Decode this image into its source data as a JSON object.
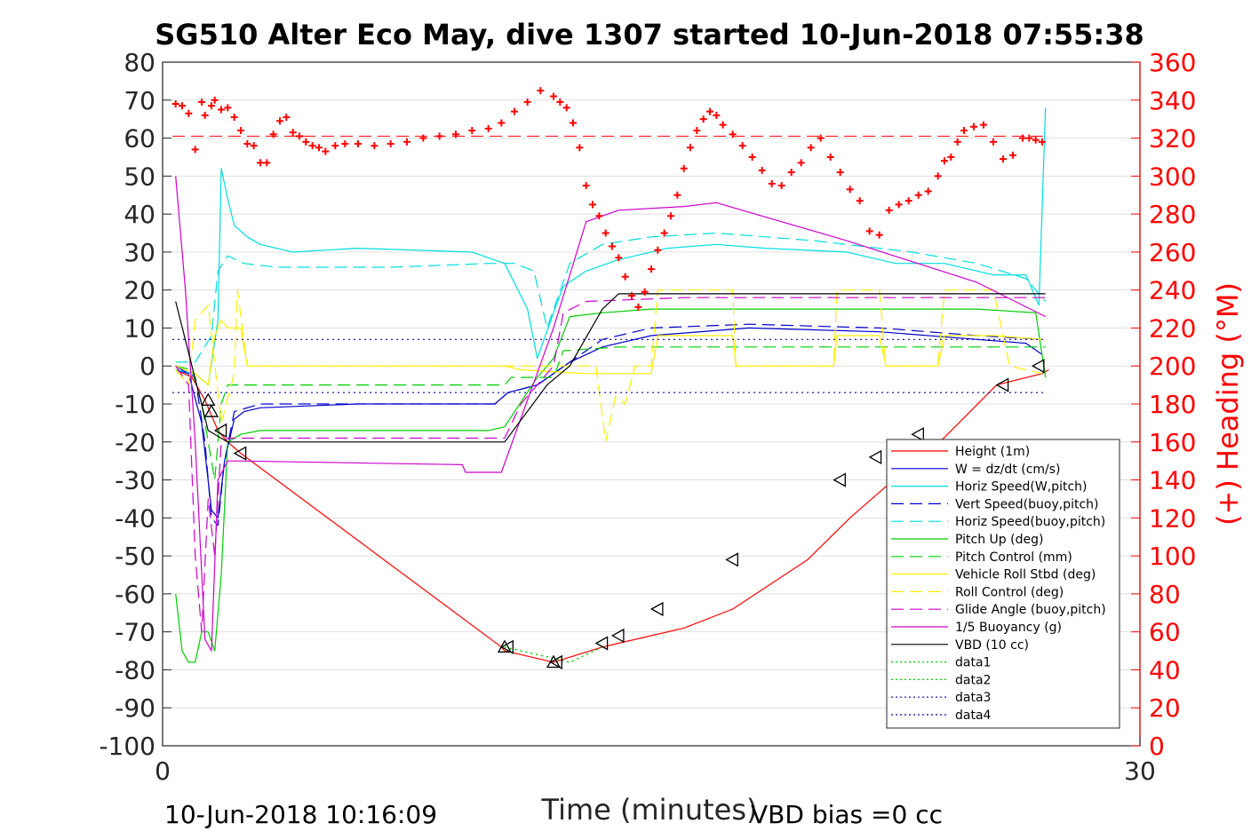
{
  "chart_data": {
    "type": "line",
    "title": "SG510 Alter Eco May, dive 1307 started 10-Jun-2018 07:55:38",
    "xlabel": "Time (minutes)",
    "ylabel": "",
    "ylabel_right": "(+) Heading (°M)",
    "xlim": [
      0,
      30
    ],
    "ylim": [
      -100,
      80
    ],
    "ylim_right": [
      0,
      360
    ],
    "x_ticks": [
      "0",
      "30"
    ],
    "y_ticks": [
      "80",
      "70",
      "60",
      "50",
      "40",
      "30",
      "20",
      "10",
      "0",
      "-10",
      "-20",
      "-30",
      "-40",
      "-50",
      "-60",
      "-70",
      "-80",
      "-90",
      "-100"
    ],
    "y_ticks_right": [
      "360",
      "340",
      "320",
      "300",
      "280",
      "260",
      "240",
      "220",
      "200",
      "180",
      "160",
      "140",
      "120",
      "100",
      "80",
      "60",
      "40",
      "20",
      "0"
    ],
    "grid": true,
    "legend_position": "lower-right",
    "footer_left": "10-Jun-2018 10:16:09",
    "footer_right": "VBD bias =0 cc",
    "series": [
      {
        "name": "Height (1m)",
        "color": "#ff0000",
        "style": "solid",
        "x": [
          0.4,
          0.9,
          1.3,
          1.5,
          1.7,
          2.0,
          2.4,
          10.4,
          10.5,
          12.0,
          13.5,
          14.0,
          16.0,
          17.5,
          19.8,
          21.1,
          22.3,
          23.4,
          25.6,
          27.0,
          27.2
        ],
        "y": [
          -1,
          -3,
          -9,
          -13,
          -17,
          -20,
          -23,
          -74,
          -75,
          -78,
          -74,
          -73,
          -69,
          -64,
          -51,
          -40,
          -31,
          -24,
          -5,
          -2,
          -1
        ]
      },
      {
        "name": "W = dz/dt (cm/s)",
        "color": "#0000cc",
        "style": "solid",
        "x": [
          0.4,
          0.8,
          1.2,
          1.5,
          1.7,
          1.9,
          2.2,
          2.5,
          3.0,
          6.0,
          10.2,
          10.6,
          11.5,
          12.0,
          12.5,
          13.5,
          15.0,
          18.0,
          22.0,
          25.0,
          26.5,
          27.0
        ],
        "y": [
          -1,
          -2,
          -15,
          -38,
          -40,
          -25,
          -14,
          -12,
          -11,
          -10,
          -10,
          -7,
          -5,
          -2,
          1,
          5,
          8,
          10,
          9,
          7,
          6,
          3
        ]
      },
      {
        "name": "Horiz Speed(W,pitch)",
        "color": "#00dddd",
        "style": "solid",
        "x": [
          0.4,
          1.0,
          1.4,
          1.7,
          1.8,
          2.0,
          2.2,
          2.6,
          3.0,
          4.0,
          6.0,
          9.5,
          10.5,
          11.2,
          11.5,
          12.0,
          12.3,
          13.0,
          14.0,
          15.5,
          17.0,
          18.5,
          21.0,
          22.5,
          24.0,
          25.5,
          26.5,
          26.9,
          27.1
        ],
        "y": [
          -1,
          -2,
          -5,
          12,
          52,
          44,
          37,
          34,
          32,
          30,
          31,
          30,
          27,
          15,
          2,
          14,
          21,
          25,
          28,
          31,
          32,
          31,
          30,
          27,
          27,
          24,
          24,
          16,
          68
        ]
      },
      {
        "name": "Vert Speed(buoy,pitch)",
        "color": "#0000cc",
        "style": "dashed",
        "x": [
          0.4,
          1.0,
          1.3,
          1.5,
          1.7,
          1.9,
          2.2,
          3.0,
          6.0,
          10.2,
          10.6,
          11.5,
          12.5,
          13.5,
          15.0,
          18.0,
          22.0,
          25.0,
          27.0
        ],
        "y": [
          0,
          -3,
          -20,
          -40,
          -42,
          -25,
          -12,
          -10,
          -10,
          -10,
          -7,
          -5,
          1,
          7,
          10,
          11,
          10,
          8,
          7
        ]
      },
      {
        "name": "Horiz Speed(buoy,pitch)",
        "color": "#00dddd",
        "style": "dashed",
        "x": [
          0.4,
          1.0,
          1.5,
          1.7,
          2.0,
          2.5,
          3.5,
          7.0,
          10.0,
          10.8,
          11.4,
          11.8,
          12.5,
          13.5,
          15.0,
          17.0,
          20.0,
          23.0,
          25.0,
          26.5,
          27.1
        ],
        "y": [
          1,
          1,
          8,
          25,
          29,
          27,
          26,
          26,
          27,
          27,
          25,
          10,
          27,
          32,
          34,
          35,
          33,
          30,
          27,
          23,
          17
        ]
      },
      {
        "name": "Pitch Up (deg)",
        "color": "#00cc00",
        "style": "solid",
        "x": [
          0.4,
          0.6,
          0.8,
          1.0,
          1.2,
          1.4,
          1.6,
          1.8,
          2.0,
          2.4,
          3.0,
          6.0,
          10.0,
          10.5,
          11.5,
          12.0,
          12.5,
          13.5,
          15.0,
          20.0,
          25.0,
          26.8,
          27.1
        ],
        "y": [
          -60,
          -75,
          -78,
          -78,
          -70,
          -70,
          -75,
          -55,
          -20,
          -18,
          -17,
          -17,
          -17,
          -16,
          -3,
          2,
          13,
          14,
          15,
          15,
          15,
          14,
          -3
        ]
      },
      {
        "name": "Pitch Control (mm)",
        "color": "#00cc00",
        "style": "dashed",
        "x": [
          0.4,
          0.9,
          1.2,
          1.6,
          1.8,
          2.0,
          10.5,
          10.7,
          12.0,
          12.3,
          14.0,
          27.1
        ],
        "y": [
          0,
          -1,
          -10,
          -30,
          -10,
          -5,
          -5,
          -3,
          -3,
          4,
          5,
          5
        ]
      },
      {
        "name": "Vehicle Roll Stbd (deg)",
        "color": "#ffee00",
        "style": "solid",
        "x": [
          0.4,
          1.0,
          1.4,
          1.6,
          1.8,
          2.0,
          2.4,
          2.6,
          3.0,
          10.5,
          11.0,
          13.0,
          15.0,
          15.2,
          17.5,
          17.6,
          20.6,
          20.7,
          22.0,
          22.2,
          23.8,
          24.0,
          25.5,
          27.0
        ],
        "y": [
          0,
          -2,
          -5,
          8,
          12,
          10,
          10,
          0,
          0,
          0,
          -1,
          -2,
          -2,
          8,
          8,
          0,
          0,
          8,
          8,
          0,
          0,
          8,
          8,
          7
        ]
      },
      {
        "name": "Roll Control (deg)",
        "color": "#ffee00",
        "style": "dashed",
        "x": [
          0.4,
          0.8,
          1.0,
          1.4,
          1.8,
          2.2,
          2.3,
          2.6,
          3.0,
          10.5,
          12.0,
          13.3,
          13.6,
          13.9,
          14.2,
          14.5,
          15.0,
          15.2,
          17.5,
          17.6,
          20.6,
          20.7,
          22.0,
          22.2,
          23.8,
          24.0,
          25.5,
          26.0,
          27.0
        ],
        "y": [
          -1,
          -5,
          12,
          16,
          -15,
          -2,
          20,
          0,
          0,
          0,
          0,
          0,
          -20,
          -8,
          -10,
          0,
          0,
          20,
          20,
          0,
          0,
          20,
          20,
          0,
          0,
          20,
          20,
          0,
          -2
        ]
      },
      {
        "name": "Glide Angle (buoy,pitch)",
        "color": "#cc00cc",
        "style": "dashed",
        "x": [
          0.4,
          0.8,
          1.0,
          1.2,
          1.4,
          1.6,
          1.8,
          2.0,
          2.4,
          6.0,
          10.5,
          11.0,
          12.0,
          12.3,
          13.0,
          16.0,
          20.0,
          24.0,
          26.5,
          27.1
        ],
        "y": [
          0,
          -5,
          -50,
          -70,
          -35,
          -50,
          -20,
          -19,
          -19,
          -19,
          -19,
          -10,
          0,
          14,
          17,
          18,
          18,
          18,
          18,
          18
        ]
      },
      {
        "name": "1/5 Buoyancy (g)",
        "color": "#cc00cc",
        "style": "solid",
        "x": [
          0.4,
          0.7,
          1.0,
          1.3,
          1.5,
          1.7,
          2.0,
          2.4,
          9.2,
          9.3,
          10.4,
          12.0,
          13.0,
          14.0,
          16.0,
          17.0,
          21.0,
          25.0,
          27.1
        ],
        "y": [
          50,
          20,
          -20,
          -72,
          -75,
          -30,
          -25,
          -25,
          -26,
          -28,
          -28,
          10,
          38,
          41,
          42,
          43,
          33,
          22,
          13
        ]
      },
      {
        "name": "VBD (10 cc)",
        "color": "#000000",
        "style": "solid",
        "x": [
          0.4,
          1.4,
          2.0,
          2.2,
          10.5,
          11.8,
          12.5,
          13.5,
          14.0,
          27.1
        ],
        "y": [
          17,
          -17,
          -20,
          -20,
          -20,
          -5,
          0,
          15,
          19,
          19
        ]
      },
      {
        "name": "data1",
        "color": "#00cc00",
        "style": "dotted",
        "x": [
          10.5,
          11.5,
          12.5,
          13.5
        ],
        "y": [
          -74,
          -76,
          -78,
          -74
        ]
      },
      {
        "name": "data2",
        "color": "#00cc00",
        "style": "dotted",
        "x": [
          10.5,
          11.5,
          12.5,
          13.5
        ],
        "y": [
          -74,
          -76,
          -78,
          -74
        ]
      },
      {
        "name": "data3",
        "color": "#0000aa",
        "style": "dotted",
        "x": [
          0.3,
          27.1
        ],
        "y": [
          7,
          7
        ]
      },
      {
        "name": "data4",
        "color": "#0000aa",
        "style": "dotted",
        "x": [
          0.3,
          27.1
        ],
        "y": [
          -7,
          -7
        ]
      }
    ],
    "heading": {
      "name": "Heading",
      "color": "#ff0000",
      "mean": 321,
      "x": [
        0.4,
        0.6,
        0.8,
        1.0,
        1.2,
        1.3,
        1.5,
        1.6,
        1.8,
        2.0,
        2.2,
        2.4,
        2.6,
        2.8,
        3.0,
        3.2,
        3.4,
        3.6,
        3.8,
        4.0,
        4.2,
        4.4,
        4.6,
        4.8,
        5.0,
        5.3,
        5.6,
        6.0,
        6.5,
        7.0,
        7.5,
        8.0,
        8.5,
        9.0,
        9.5,
        10.0,
        10.4,
        10.8,
        11.2,
        11.6,
        12.0,
        12.2,
        12.4,
        12.6,
        12.8,
        13.0,
        13.2,
        13.4,
        13.6,
        13.8,
        14.0,
        14.2,
        14.4,
        14.6,
        14.8,
        15.0,
        15.2,
        15.4,
        15.6,
        15.8,
        16.0,
        16.2,
        16.4,
        16.6,
        16.8,
        17.0,
        17.2,
        17.5,
        17.8,
        18.1,
        18.4,
        18.7,
        19.0,
        19.3,
        19.6,
        19.9,
        20.2,
        20.5,
        20.8,
        21.1,
        21.4,
        21.7,
        22.0,
        22.3,
        22.6,
        22.9,
        23.2,
        23.5,
        23.8,
        24.0,
        24.2,
        24.4,
        24.6,
        24.9,
        25.2,
        25.5,
        25.8,
        26.1,
        26.4,
        26.6,
        26.8,
        27.0
      ],
      "y": [
        338,
        337,
        333,
        314,
        339,
        332,
        337,
        340,
        335,
        336,
        331,
        324,
        317,
        316,
        307,
        307,
        322,
        329,
        331,
        323,
        321,
        318,
        316,
        315,
        313,
        316,
        317,
        317,
        316,
        317,
        318,
        320,
        321,
        322,
        324,
        325,
        328,
        334,
        339,
        345,
        342,
        339,
        336,
        328,
        315,
        295,
        285,
        279,
        270,
        263,
        257,
        247,
        237,
        231,
        239,
        251,
        261,
        270,
        279,
        290,
        304,
        315,
        324,
        330,
        334,
        332,
        327,
        322,
        316,
        310,
        303,
        296,
        295,
        302,
        307,
        315,
        320,
        310,
        302,
        293,
        287,
        271,
        269,
        282,
        285,
        287,
        290,
        292,
        300,
        308,
        310,
        318,
        324,
        326,
        327,
        318,
        309,
        311,
        320,
        320,
        319,
        318
      ]
    },
    "markers": {
      "style": "triangle",
      "points": [
        {
          "x": 1.4,
          "y": -9,
          "dir": "up"
        },
        {
          "x": 1.5,
          "y": -12,
          "dir": "up"
        },
        {
          "x": 1.8,
          "y": -17,
          "dir": "left"
        },
        {
          "x": 2.4,
          "y": -23,
          "dir": "left"
        },
        {
          "x": 10.5,
          "y": -74,
          "dir": "up"
        },
        {
          "x": 10.6,
          "y": -74,
          "dir": "left"
        },
        {
          "x": 12.0,
          "y": -78,
          "dir": "up"
        },
        {
          "x": 12.1,
          "y": -78,
          "dir": "left"
        },
        {
          "x": 13.5,
          "y": -73,
          "dir": "left"
        },
        {
          "x": 14.0,
          "y": -71,
          "dir": "left"
        },
        {
          "x": 15.2,
          "y": -64,
          "dir": "left"
        },
        {
          "x": 17.5,
          "y": -51,
          "dir": "left"
        },
        {
          "x": 20.8,
          "y": -30,
          "dir": "left"
        },
        {
          "x": 21.9,
          "y": -24,
          "dir": "left"
        },
        {
          "x": 23.2,
          "y": -18,
          "dir": "left"
        },
        {
          "x": 25.8,
          "y": -5,
          "dir": "left"
        },
        {
          "x": 26.9,
          "y": 0,
          "dir": "left"
        }
      ]
    }
  }
}
